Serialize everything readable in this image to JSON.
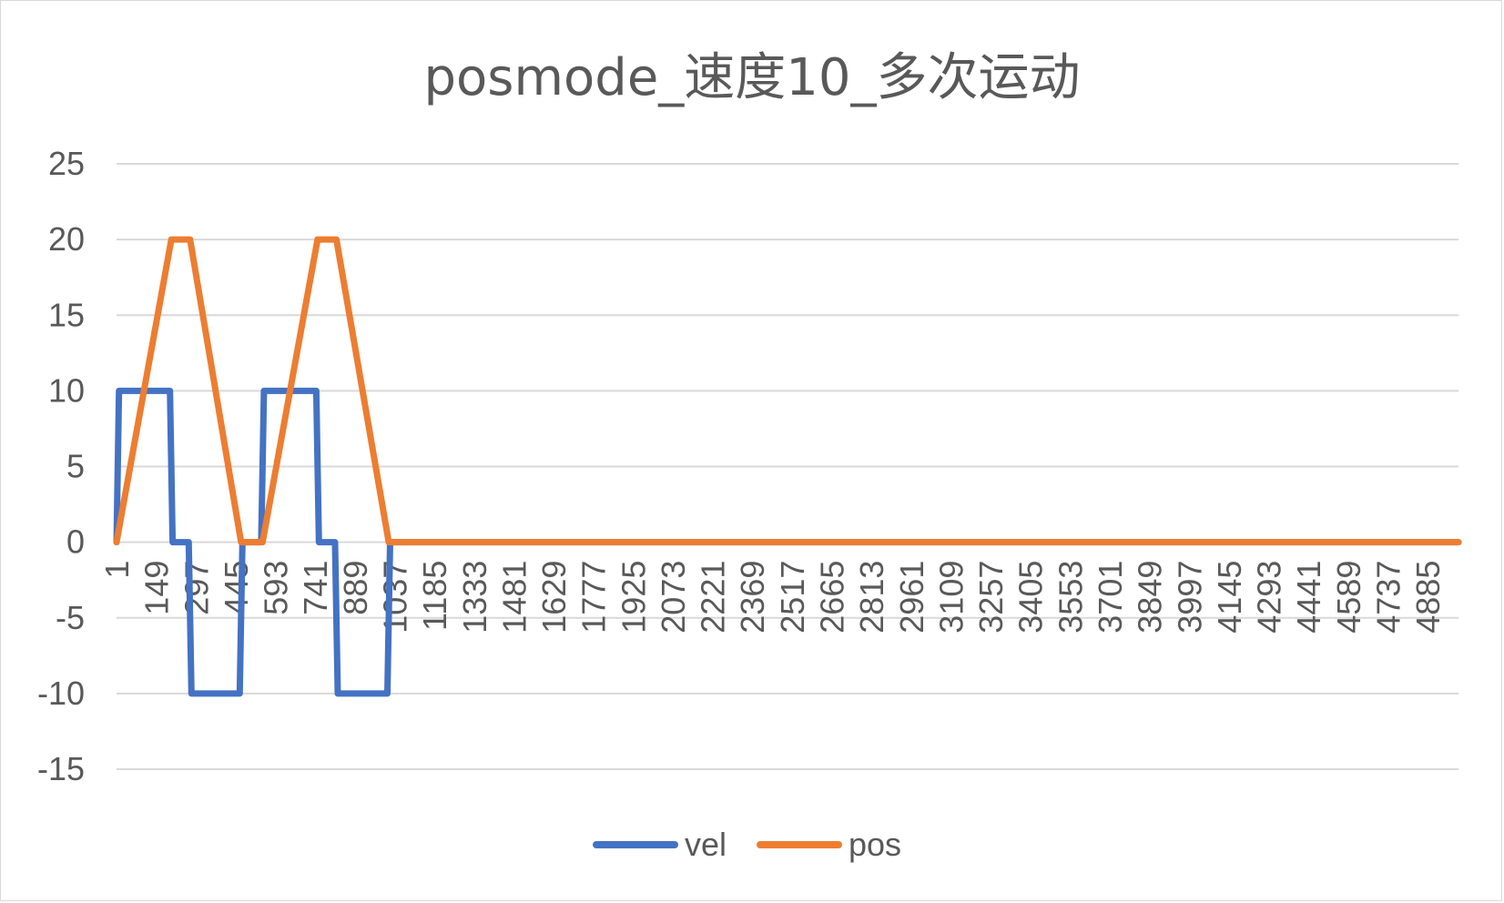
{
  "chart_data": {
    "type": "line",
    "title": "posmode_速度10_多次运动",
    "xlabel": "",
    "ylabel": "",
    "ylim": [
      -15,
      25
    ],
    "yticks": [
      25,
      20,
      15,
      10,
      5,
      0,
      -5,
      -10,
      -15
    ],
    "xlim": [
      1,
      5000
    ],
    "xticks": [
      1,
      149,
      297,
      445,
      593,
      741,
      889,
      1037,
      1185,
      1333,
      1481,
      1629,
      1777,
      1925,
      2073,
      2221,
      2369,
      2517,
      2665,
      2813,
      2961,
      3109,
      3257,
      3405,
      3553,
      3701,
      3849,
      3997,
      4145,
      4293,
      4441,
      4589,
      4737,
      4885
    ],
    "grid": true,
    "legend": "bottom",
    "series": [
      {
        "name": "vel",
        "color": "#4472c4",
        "points": [
          [
            1,
            0
          ],
          [
            10,
            10
          ],
          [
            200,
            10
          ],
          [
            210,
            0
          ],
          [
            270,
            0
          ],
          [
            280,
            -10
          ],
          [
            460,
            -10
          ],
          [
            470,
            0
          ],
          [
            540,
            0
          ],
          [
            550,
            10
          ],
          [
            745,
            10
          ],
          [
            755,
            0
          ],
          [
            815,
            0
          ],
          [
            825,
            -10
          ],
          [
            1010,
            -10
          ],
          [
            1020,
            0
          ],
          [
            5000,
            0
          ]
        ]
      },
      {
        "name": "pos",
        "color": "#ed7d31",
        "points": [
          [
            1,
            0
          ],
          [
            205,
            20
          ],
          [
            275,
            20
          ],
          [
            465,
            0
          ],
          [
            545,
            0
          ],
          [
            750,
            20
          ],
          [
            820,
            20
          ],
          [
            1015,
            0
          ],
          [
            5000,
            0
          ]
        ]
      }
    ]
  }
}
